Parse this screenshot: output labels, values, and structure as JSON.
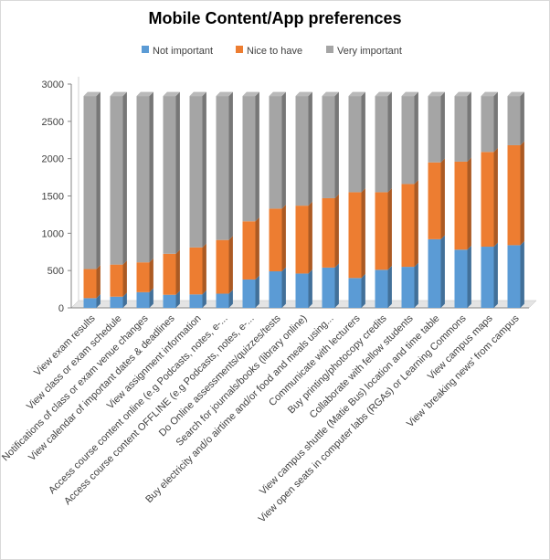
{
  "chart_data": {
    "type": "bar",
    "stacked": true,
    "title": "Mobile Content/App preferences",
    "categories": [
      "View exam results",
      "View class or exam schedule",
      "Notifications of class or exam venue changes",
      "View calendar of important dates & deadlines",
      "View assignment information",
      "Access course content online (e.g Podcasts, notes, e-...",
      "Access course content OFFLINE (e.g Podcasts, notes, e-...",
      "Do Online assessments/quizzes/tests",
      "Search for journals/books (library online)",
      "Buy electricity and/o airtime and/or food and meals using...",
      "Communicate with lecturers",
      "Buy printing/photocopy credits",
      "Collaborate with fellow students",
      "View campus shuttle (Matie Bus) location and time table",
      "View open seats in computer labs (RGAs) or Learning Commons",
      "View campus maps",
      "View 'breaking news' from campus"
    ],
    "series": [
      {
        "name": "Not important",
        "color": "#5b9bd5",
        "values": [
          130,
          150,
          210,
          175,
          180,
          190,
          380,
          490,
          460,
          540,
          400,
          510,
          550,
          920,
          780,
          820,
          840
        ]
      },
      {
        "name": "Nice to have",
        "color": "#ed7d31",
        "values": [
          390,
          430,
          400,
          550,
          630,
          720,
          780,
          840,
          910,
          930,
          1150,
          1040,
          1110,
          1030,
          1180,
          1270,
          1340
        ]
      },
      {
        "name": "Very important",
        "color": "#a5a5a5",
        "values": [
          2320,
          2260,
          2230,
          2115,
          2030,
          1930,
          1680,
          1510,
          1470,
          1370,
          1290,
          1290,
          1180,
          890,
          880,
          750,
          660
        ]
      }
    ],
    "ylim": [
      0,
      3000
    ],
    "yticks": [
      "0",
      "500",
      "1000",
      "1500",
      "2000",
      "2500",
      "3000"
    ],
    "grid": false,
    "legend": "top"
  }
}
